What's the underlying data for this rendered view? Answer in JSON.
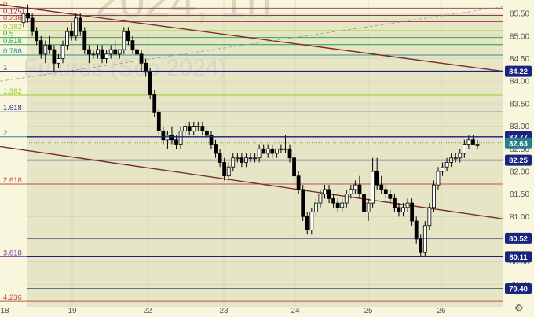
{
  "chart_data": {
    "type": "candlestick",
    "title": "",
    "watermark": "2024, 1h",
    "watermark_sub": "Futures (Sep 2024)",
    "y_range": [
      79.0,
      85.8
    ],
    "y_ticks": [
      85.5,
      85.0,
      84.5,
      84.0,
      83.5,
      83.0,
      82.5,
      82.0,
      81.5,
      81.0,
      80.5,
      80.0,
      79.5
    ],
    "x_ticks": [
      "18",
      "19",
      "22",
      "23",
      "24",
      "25",
      "26"
    ],
    "grid": true,
    "fib_levels": [
      {
        "label": "0",
        "price": 85.62,
        "color": "#b04848"
      },
      {
        "label": "0.125",
        "price": 85.46,
        "color": "#8a3a5a"
      },
      {
        "label": "0.236",
        "price": 85.32,
        "color": "#b04848"
      },
      {
        "label": "0.382",
        "price": 85.12,
        "color": "#99cc33"
      },
      {
        "label": "0.5",
        "price": 84.97,
        "color": "#33aa33"
      },
      {
        "label": "0.618",
        "price": 84.81,
        "color": "#229955"
      },
      {
        "label": "0.786",
        "price": 84.58,
        "color": "#2a8f8f"
      },
      {
        "label": "1",
        "price": 84.22,
        "color": "#1a237e"
      },
      {
        "label": "1.382",
        "price": 83.69,
        "color": "#99cc33"
      },
      {
        "label": "1.618",
        "price": 83.32,
        "color": "#2a3a9e"
      },
      {
        "label": "2",
        "price": 82.77,
        "color": "#2a8f8f"
      },
      {
        "label": "2.618",
        "price": 81.72,
        "color": "#c0504d"
      },
      {
        "label": "3.618",
        "price": 80.11,
        "color": "#7b3fa0"
      },
      {
        "label": "4.236",
        "price": 79.12,
        "color": "#c0504d"
      }
    ],
    "price_levels": [
      {
        "label": "84.22",
        "price": 84.22
      },
      {
        "label": "82.77",
        "price": 82.77
      },
      {
        "label": "82.63",
        "price": 82.63,
        "current": true
      },
      {
        "label": "82.25",
        "price": 82.25
      },
      {
        "label": "80.52",
        "price": 80.52
      },
      {
        "label": "80.11",
        "price": 80.11
      },
      {
        "label": "79.40",
        "price": 79.4
      }
    ],
    "trend_lines": [
      {
        "from": [
          0,
          85.7
        ],
        "to": [
          640,
          84.22
        ]
      },
      {
        "from": [
          0,
          82.55
        ],
        "to": [
          640,
          80.95
        ]
      }
    ],
    "dashed_line": {
      "from": [
        0,
        84.0
      ],
      "to": [
        640,
        85.65
      ]
    },
    "candles": [
      [
        85.3,
        85.6,
        85.2,
        85.5
      ],
      [
        85.5,
        85.7,
        85.3,
        85.4
      ],
      [
        85.4,
        85.5,
        85.0,
        85.1
      ],
      [
        85.1,
        85.2,
        84.8,
        84.9
      ],
      [
        84.9,
        85.0,
        84.5,
        84.6
      ],
      [
        84.6,
        84.9,
        84.4,
        84.8
      ],
      [
        84.8,
        85.0,
        84.6,
        84.7
      ],
      [
        84.7,
        84.8,
        84.2,
        84.4
      ],
      [
        84.4,
        84.6,
        84.3,
        84.5
      ],
      [
        84.5,
        84.9,
        84.4,
        84.8
      ],
      [
        84.8,
        85.2,
        84.7,
        85.1
      ],
      [
        85.1,
        85.3,
        84.9,
        85.0
      ],
      [
        85.0,
        85.5,
        84.9,
        85.4
      ],
      [
        85.4,
        85.5,
        85.0,
        85.1
      ],
      [
        85.1,
        85.2,
        84.6,
        84.7
      ],
      [
        84.7,
        84.8,
        84.4,
        84.6
      ],
      [
        84.6,
        84.7,
        84.5,
        84.6
      ],
      [
        84.6,
        84.8,
        84.5,
        84.7
      ],
      [
        84.7,
        84.8,
        84.4,
        84.5
      ],
      [
        84.5,
        84.7,
        84.4,
        84.6
      ],
      [
        84.6,
        84.8,
        84.5,
        84.7
      ],
      [
        84.7,
        84.9,
        84.6,
        84.6
      ],
      [
        84.6,
        84.7,
        84.5,
        84.7
      ],
      [
        84.7,
        85.2,
        84.6,
        85.1
      ],
      [
        85.1,
        85.2,
        84.8,
        84.9
      ],
      [
        84.9,
        85.0,
        84.6,
        84.7
      ],
      [
        84.7,
        84.8,
        84.5,
        84.6
      ],
      [
        84.6,
        84.7,
        84.2,
        84.4
      ],
      [
        84.4,
        84.5,
        84.1,
        84.2
      ],
      [
        84.2,
        84.3,
        83.6,
        83.7
      ],
      [
        83.7,
        83.8,
        83.2,
        83.3
      ],
      [
        83.3,
        83.4,
        82.8,
        82.9
      ],
      [
        82.9,
        83.0,
        82.6,
        82.7
      ],
      [
        82.7,
        82.9,
        82.5,
        82.8
      ],
      [
        82.8,
        83.0,
        82.6,
        82.7
      ],
      [
        82.7,
        82.8,
        82.5,
        82.6
      ],
      [
        82.6,
        83.0,
        82.5,
        82.9
      ],
      [
        82.9,
        83.1,
        82.8,
        83.0
      ],
      [
        83.0,
        83.1,
        82.8,
        82.9
      ],
      [
        82.9,
        83.1,
        82.8,
        83.0
      ],
      [
        83.0,
        83.1,
        82.9,
        83.0
      ],
      [
        83.0,
        83.1,
        82.8,
        82.9
      ],
      [
        82.9,
        83.0,
        82.7,
        82.8
      ],
      [
        82.8,
        82.9,
        82.5,
        82.6
      ],
      [
        82.6,
        82.7,
        82.3,
        82.4
      ],
      [
        82.4,
        82.5,
        82.1,
        82.2
      ],
      [
        82.2,
        82.3,
        81.8,
        81.9
      ],
      [
        81.9,
        82.2,
        81.8,
        82.1
      ],
      [
        82.1,
        82.4,
        82.0,
        82.3
      ],
      [
        82.3,
        82.4,
        82.2,
        82.3
      ],
      [
        82.3,
        82.4,
        82.1,
        82.2
      ],
      [
        82.2,
        82.4,
        82.1,
        82.3
      ],
      [
        82.3,
        82.4,
        82.2,
        82.3
      ],
      [
        82.3,
        82.4,
        82.2,
        82.3
      ],
      [
        82.3,
        82.6,
        82.2,
        82.5
      ],
      [
        82.5,
        82.6,
        82.4,
        82.4
      ],
      [
        82.4,
        82.6,
        82.3,
        82.5
      ],
      [
        82.5,
        82.6,
        82.3,
        82.4
      ],
      [
        82.4,
        82.5,
        82.3,
        82.5
      ],
      [
        82.5,
        82.6,
        82.4,
        82.5
      ],
      [
        82.5,
        82.8,
        82.4,
        82.5
      ],
      [
        82.5,
        82.6,
        82.2,
        82.3
      ],
      [
        82.3,
        82.4,
        81.8,
        81.9
      ],
      [
        81.9,
        82.0,
        81.5,
        81.6
      ],
      [
        81.6,
        81.7,
        80.9,
        81.0
      ],
      [
        81.0,
        81.1,
        80.6,
        80.7
      ],
      [
        80.7,
        81.2,
        80.6,
        81.1
      ],
      [
        81.1,
        81.4,
        81.0,
        81.3
      ],
      [
        81.3,
        81.6,
        81.2,
        81.5
      ],
      [
        81.5,
        81.7,
        81.4,
        81.6
      ],
      [
        81.6,
        81.7,
        81.3,
        81.4
      ],
      [
        81.4,
        81.5,
        81.2,
        81.3
      ],
      [
        81.3,
        81.4,
        81.1,
        81.2
      ],
      [
        81.2,
        81.4,
        81.1,
        81.3
      ],
      [
        81.3,
        81.6,
        81.2,
        81.5
      ],
      [
        81.5,
        81.7,
        81.4,
        81.6
      ],
      [
        81.6,
        81.8,
        81.5,
        81.7
      ],
      [
        81.7,
        81.9,
        81.4,
        81.5
      ],
      [
        81.5,
        81.6,
        81.0,
        81.1
      ],
      [
        81.1,
        81.4,
        80.9,
        81.3
      ],
      [
        81.3,
        82.3,
        81.2,
        82.0
      ],
      [
        82.0,
        82.3,
        81.6,
        81.7
      ],
      [
        81.7,
        81.9,
        81.5,
        81.6
      ],
      [
        81.6,
        81.7,
        81.4,
        81.5
      ],
      [
        81.5,
        81.6,
        81.3,
        81.4
      ],
      [
        81.4,
        81.5,
        81.1,
        81.2
      ],
      [
        81.2,
        81.3,
        81.0,
        81.1
      ],
      [
        81.1,
        81.3,
        81.0,
        81.2
      ],
      [
        81.2,
        81.4,
        81.1,
        81.3
      ],
      [
        81.3,
        81.4,
        80.8,
        80.9
      ],
      [
        80.9,
        81.0,
        80.4,
        80.5
      ],
      [
        80.5,
        80.6,
        80.1,
        80.2
      ],
      [
        80.2,
        80.9,
        80.1,
        80.8
      ],
      [
        80.8,
        81.3,
        80.7,
        81.2
      ],
      [
        81.2,
        81.8,
        81.1,
        81.7
      ],
      [
        81.7,
        82.1,
        81.6,
        82.0
      ],
      [
        82.0,
        82.2,
        81.9,
        82.1
      ],
      [
        82.1,
        82.3,
        82.0,
        82.2
      ],
      [
        82.2,
        82.4,
        82.1,
        82.3
      ],
      [
        82.3,
        82.4,
        82.2,
        82.3
      ],
      [
        82.3,
        82.5,
        82.2,
        82.4
      ],
      [
        82.4,
        82.7,
        82.3,
        82.6
      ],
      [
        82.6,
        82.8,
        82.5,
        82.7
      ],
      [
        82.7,
        82.8,
        82.6,
        82.6
      ],
      [
        82.6,
        82.7,
        82.5,
        82.6
      ]
    ]
  }
}
